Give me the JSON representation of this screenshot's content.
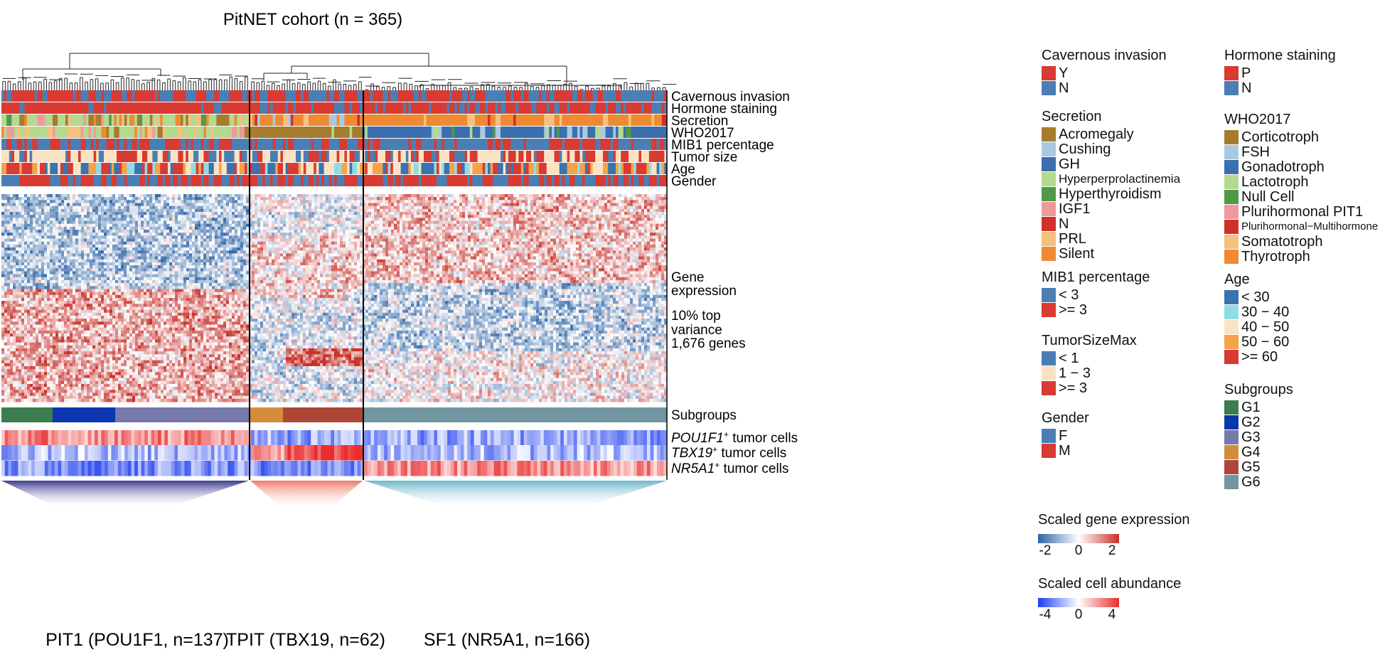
{
  "chart_data": {
    "type": "heatmap",
    "title": "PitNET cohort (n = 365)",
    "clusters": [
      {
        "label": "PIT1 (POU1F1, n=137)",
        "n": 137
      },
      {
        "label": "TPIT (TBX19, n=62)",
        "n": 62
      },
      {
        "label": "SF1 (NR5A1, n=166)",
        "n": 166
      }
    ],
    "annotation_tracks": [
      "Cavernous invasion",
      "Hormone staining",
      "Secretion",
      "WHO2017",
      "MIB1 percentage",
      "Tumor size",
      "Age",
      "Gender"
    ],
    "main_heatmap": {
      "label_lines": [
        "Gene",
        "expression",
        "10% top",
        "variance",
        "1,676 genes"
      ],
      "n_genes": 1676,
      "pattern_by_cluster": {
        "PIT1": "mixed blue (upper) / red (lower)",
        "TPIT": "mixed with a red block in lower rows",
        "SF1": "red (upper) / blue (lower)"
      }
    },
    "subgroup_track": {
      "label": "Subgroups",
      "segments": [
        {
          "group": "G1",
          "samples": 34
        },
        {
          "group": "G2",
          "samples": 42
        },
        {
          "group": "G3",
          "samples": 61
        },
        {
          "group": "G4",
          "samples": 22
        },
        {
          "group": "G5",
          "samples": 53
        },
        {
          "group": "G6",
          "samples": 153
        }
      ]
    },
    "cell_abundance_rows": [
      {
        "gene": "POU1F1",
        "superscript": "+",
        "suffix": " tumor cells",
        "high_in": "PIT1"
      },
      {
        "gene": "TBX19",
        "superscript": "+",
        "suffix": " tumor cells",
        "high_in": "TPIT"
      },
      {
        "gene": "NR5A1",
        "superscript": "+",
        "suffix": " tumor cells",
        "high_in": "SF1"
      }
    ],
    "legends": [
      {
        "title": "Cavernous invasion",
        "items": [
          {
            "label": "Y",
            "color": "#d93a32"
          },
          {
            "label": "N",
            "color": "#4a7fb5"
          }
        ]
      },
      {
        "title": "Secretion",
        "items": [
          {
            "label": "Acromegaly",
            "color": "#a67c2e"
          },
          {
            "label": "Cushing",
            "color": "#a9c8e2"
          },
          {
            "label": "GH",
            "color": "#3b6fae"
          },
          {
            "label": "Hyperperprolactinemia",
            "color": "#b5d98e"
          },
          {
            "label": "Hyperthyroidism",
            "color": "#4f9a45"
          },
          {
            "label": "IGF1",
            "color": "#ee9a9c"
          },
          {
            "label": "N",
            "color": "#d22f2a"
          },
          {
            "label": "PRL",
            "color": "#f6c07e"
          },
          {
            "label": "Silent",
            "color": "#ef8a32"
          }
        ]
      },
      {
        "title": "MIB1 percentage",
        "items": [
          {
            "label": "< 3",
            "color": "#4a7fb5"
          },
          {
            "label": ">= 3",
            "color": "#d93a32"
          }
        ]
      },
      {
        "title": "TumorSizeMax",
        "items": [
          {
            "label": "< 1",
            "color": "#4a7fb5"
          },
          {
            "label": "1 − 3",
            "color": "#fbe3c2"
          },
          {
            "label": ">= 3",
            "color": "#d93a32"
          }
        ]
      },
      {
        "title": "Gender",
        "items": [
          {
            "label": "F",
            "color": "#4a7fb5"
          },
          {
            "label": "M",
            "color": "#d93a32"
          }
        ]
      },
      {
        "title": "Hormone staining",
        "items": [
          {
            "label": "P",
            "color": "#d93a32"
          },
          {
            "label": "N",
            "color": "#4a7fb5"
          }
        ]
      },
      {
        "title": "WHO2017",
        "items": [
          {
            "label": "Corticotroph",
            "color": "#a67c2e"
          },
          {
            "label": "FSH",
            "color": "#a9c8e2"
          },
          {
            "label": "Gonadotroph",
            "color": "#3b6fae"
          },
          {
            "label": "Lactotroph",
            "color": "#b5d98e"
          },
          {
            "label": "Null Cell",
            "color": "#4f9a45"
          },
          {
            "label": "Plurihormonal PIT1",
            "color": "#ee9a9c"
          },
          {
            "label": "Plurihormonal−Multihormone",
            "color": "#d22f2a"
          },
          {
            "label": "Somatotroph",
            "color": "#f6c07e"
          },
          {
            "label": "Thyrotroph",
            "color": "#ef8a32"
          }
        ]
      },
      {
        "title": "Age",
        "items": [
          {
            "label": "< 30",
            "color": "#3a73b0"
          },
          {
            "label": "30 − 40",
            "color": "#8fdce6"
          },
          {
            "label": "40 − 50",
            "color": "#fbe3c2"
          },
          {
            "label": "50 − 60",
            "color": "#f4a347"
          },
          {
            "label": ">= 60",
            "color": "#d93a32"
          }
        ]
      },
      {
        "title": "Subgroups",
        "items": [
          {
            "label": "G1",
            "color": "#3c7d4f"
          },
          {
            "label": "G2",
            "color": "#0a37ad"
          },
          {
            "label": "G3",
            "color": "#7679ac"
          },
          {
            "label": "G4",
            "color": "#d38c3c"
          },
          {
            "label": "G5",
            "color": "#ae4637"
          },
          {
            "label": "G6",
            "color": "#7195a1"
          }
        ]
      }
    ],
    "colorbars": [
      {
        "title": "Scaled gene expression",
        "min": -2,
        "max": 2,
        "ticks": [
          "-2",
          "0",
          "2"
        ],
        "colors": [
          "#2d64a6",
          "#ffffff",
          "#c8302b"
        ]
      },
      {
        "title": "Scaled cell abundance",
        "min": -4,
        "max": 4,
        "ticks": [
          "-4",
          "0",
          "4"
        ],
        "colors": [
          "#1f3ff0",
          "#ffffff",
          "#ea2c2c"
        ]
      }
    ]
  }
}
